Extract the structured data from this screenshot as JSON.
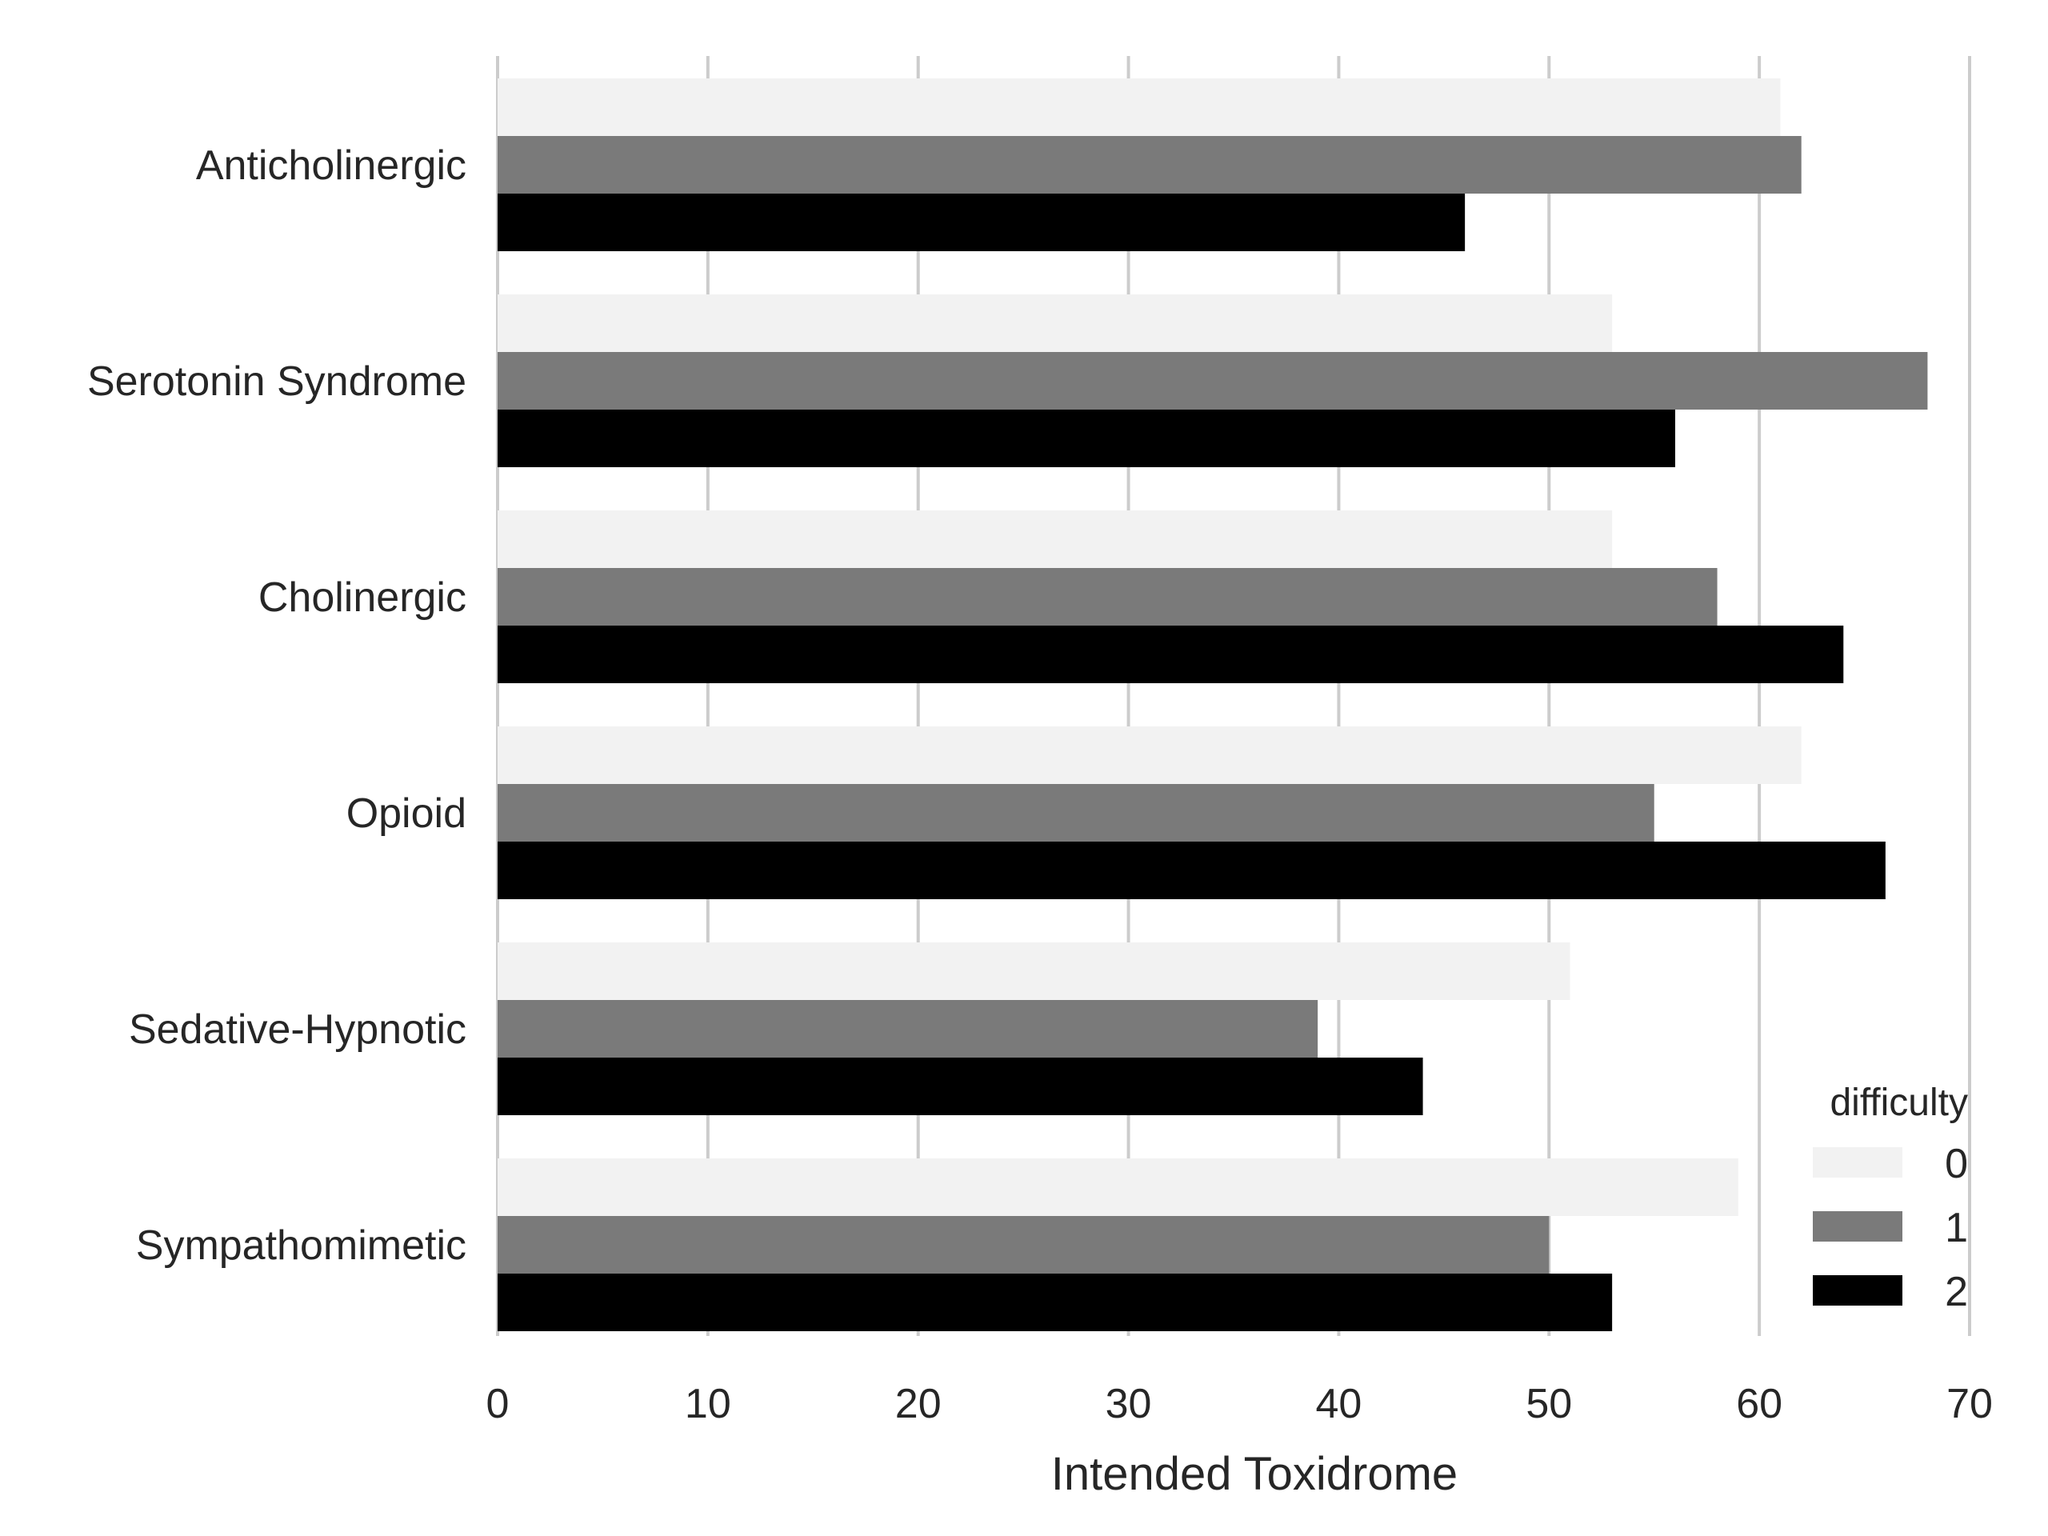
{
  "chart_data": {
    "type": "bar",
    "orientation": "horizontal",
    "categories": [
      "Anticholinergic",
      "Serotonin Syndrome",
      "Cholinergic",
      "Opioid",
      "Sedative-Hypnotic",
      "Sympathomimetic"
    ],
    "series": [
      {
        "name": "0",
        "color": "#f2f2f2",
        "values": [
          61,
          53,
          53,
          62,
          51,
          59
        ]
      },
      {
        "name": "1",
        "color": "#7a7a7a",
        "values": [
          62,
          68,
          58,
          55,
          39,
          50
        ]
      },
      {
        "name": "2",
        "color": "#000000",
        "values": [
          46,
          56,
          64,
          66,
          44,
          53
        ]
      }
    ],
    "xlabel": "Intended Toxidrome",
    "ylabel": "",
    "title": "",
    "xlim": [
      0,
      70
    ],
    "xticks": [
      0,
      10,
      20,
      30,
      40,
      50,
      60,
      70
    ],
    "grid": true,
    "legend": {
      "title": "difficulty",
      "placement": "bottom-right"
    }
  }
}
